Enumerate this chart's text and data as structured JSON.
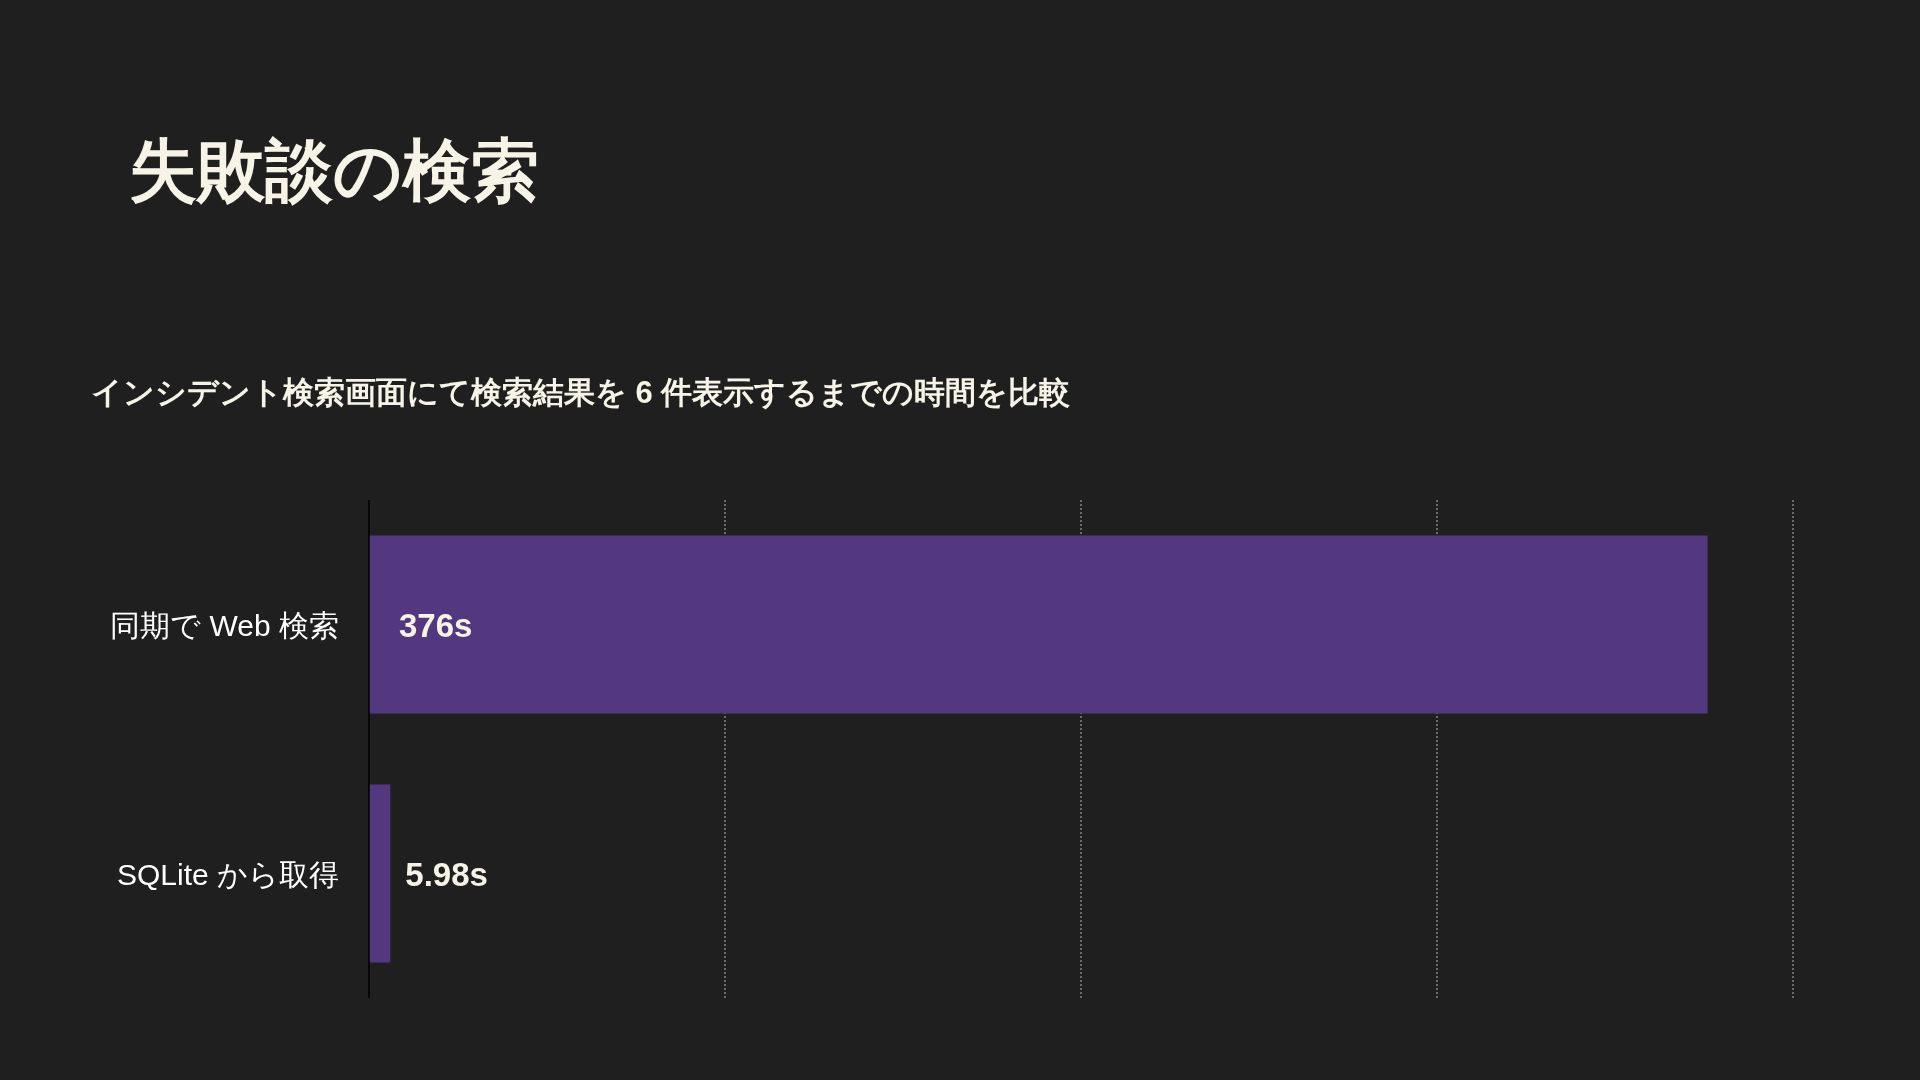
{
  "chart_data": {
    "type": "bar",
    "orientation": "horizontal",
    "title": "失敗談の検索",
    "subtitle": "インシデント検索画面にて検索結果を 6 件表示するまでの時間を比較",
    "categories": [
      "同期で Web 検索",
      "SQLite から取得"
    ],
    "values": [
      376,
      5.98
    ],
    "value_labels": [
      "376s",
      "5.98s"
    ],
    "color": "#53387f",
    "xlim": [
      0,
      400
    ],
    "xticks": [
      {
        "value": 100,
        "label": null
      },
      {
        "value": 200,
        "label": null
      },
      {
        "value": 300,
        "label": null
      },
      {
        "value": 400,
        "label": null
      }
    ],
    "tick_labels": "y",
    "grid": "x"
  }
}
